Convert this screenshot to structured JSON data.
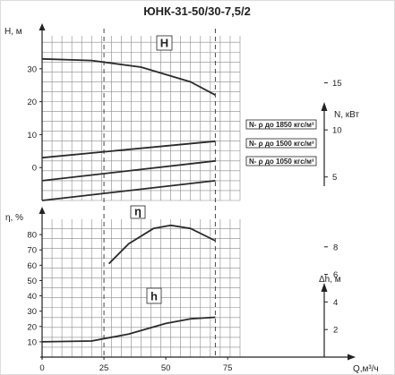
{
  "chart_data": [
    {
      "type": "line",
      "title": "ЮНК-31-50/30-7,5/2",
      "ylabel": "H, м",
      "y2label": "N, кВт",
      "xlim": [
        0,
        80
      ],
      "ylim": [
        -10,
        40
      ],
      "y2lim": [
        2.5,
        20
      ],
      "yticks": [
        0,
        10,
        20,
        30
      ],
      "y2ticks": [
        5,
        10,
        15
      ],
      "grid": true,
      "series": [
        {
          "name": "H",
          "x": [
            0,
            20,
            40,
            60,
            70
          ],
          "y": [
            33,
            32.5,
            30.5,
            26,
            22
          ]
        },
        {
          "name": "N- ρ до 1850 кгс/м³",
          "x": [
            0,
            70
          ],
          "y": [
            3,
            8
          ]
        },
        {
          "name": "N- ρ до 1500 кгс/м³",
          "x": [
            0,
            70
          ],
          "y": [
            -4,
            2
          ]
        },
        {
          "name": "N- ρ до 1050 кгс/м³",
          "x": [
            0,
            70
          ],
          "y": [
            -10,
            -4
          ]
        }
      ]
    },
    {
      "type": "line",
      "ylabel": "η, %",
      "y2label": "Δh, м",
      "xlabel": "Q,м³/ч",
      "xlim": [
        0,
        80
      ],
      "ylim": [
        0,
        90
      ],
      "y2lim": [
        0,
        10
      ],
      "xticks": [
        0,
        25,
        50,
        75
      ],
      "yticks": [
        10,
        20,
        30,
        40,
        50,
        60,
        70,
        80
      ],
      "y2ticks": [
        2,
        4,
        6,
        8
      ],
      "grid": true,
      "series": [
        {
          "name": "η",
          "x": [
            27,
            35,
            45,
            52,
            60,
            70
          ],
          "y": [
            61,
            74,
            84,
            86,
            84,
            76
          ]
        },
        {
          "name": "h",
          "x": [
            0,
            20,
            35,
            50,
            60,
            70
          ],
          "y": [
            10,
            10.5,
            15,
            22,
            25,
            26
          ]
        }
      ]
    }
  ]
}
